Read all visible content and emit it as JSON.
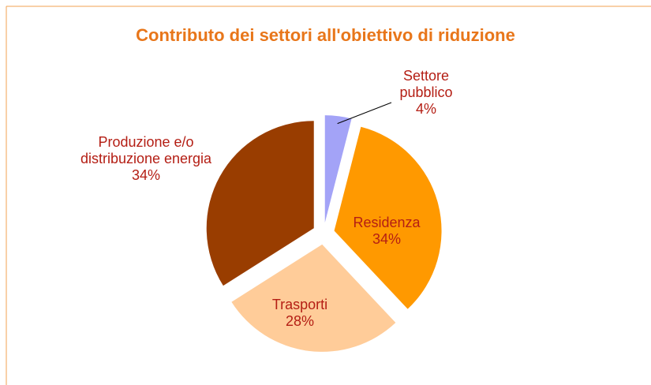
{
  "chart_data": {
    "type": "pie",
    "title": "Contributo dei settori all'obiettivo di riduzione",
    "categories": [
      "Settore pubblico",
      "Residenza",
      "Trasporti",
      "Produzione e/o distribuzione energia"
    ],
    "values": [
      4,
      34,
      28,
      34
    ],
    "value_labels": [
      "4%",
      "34%",
      "28%",
      "34%"
    ],
    "colors": [
      "#a3a3f7",
      "#ff9900",
      "#ffcc99",
      "#993d00"
    ]
  }
}
